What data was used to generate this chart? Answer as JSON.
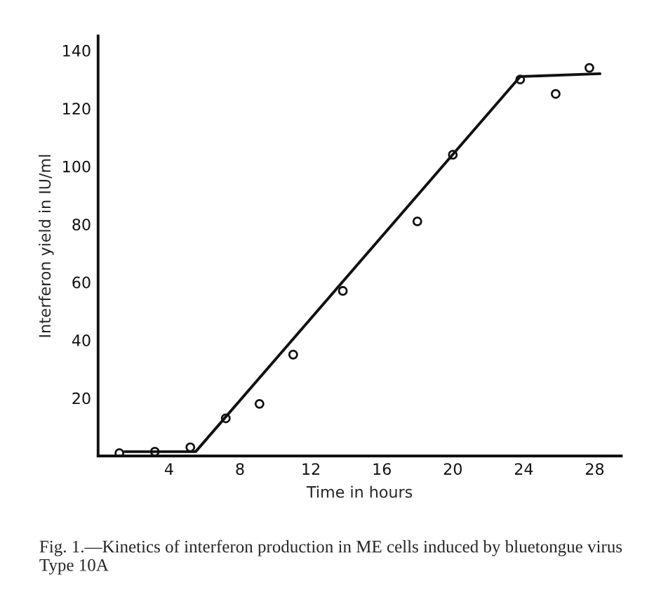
{
  "chart_data": {
    "type": "scatter",
    "xlabel": "Time in hours",
    "ylabel": "Interferon yield in IU/ml",
    "annotations": [
      "Fig. 1.—Kinetics of interferon production in ME cells induced by bluetongue virus Type 10A"
    ],
    "xlim": [
      0,
      29.5
    ],
    "ylim": [
      0,
      145
    ],
    "xticks": [
      4,
      8,
      12,
      16,
      20,
      24,
      28
    ],
    "yticks": [
      20,
      40,
      60,
      80,
      100,
      120,
      140
    ],
    "grid": false,
    "series": [
      {
        "color": "#111111",
        "marker": "circle",
        "x": [
          1.2,
          3.2,
          5.2,
          7.2,
          9.1,
          11,
          13.8,
          18,
          20,
          23.8,
          25.8,
          27.7
        ],
        "values": [
          1,
          1.5,
          3,
          13,
          18,
          35,
          57,
          81,
          104,
          130,
          125,
          134
        ]
      },
      {
        "type": "line",
        "marker": "none",
        "color": "#111111",
        "x": [
          1.5,
          5.5,
          23.8,
          28.3
        ],
        "values": [
          1.5,
          1.5,
          131,
          132
        ]
      }
    ]
  }
}
